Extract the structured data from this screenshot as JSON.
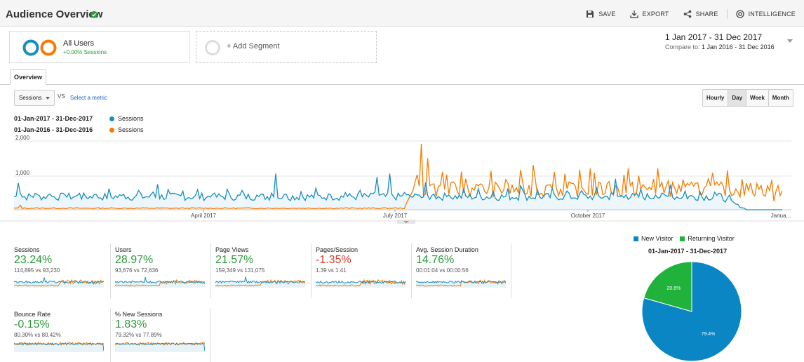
{
  "header": {
    "title": "Audience Overview",
    "actions": [
      {
        "name": "save",
        "label": "SAVE",
        "icon": "save-icon"
      },
      {
        "name": "export",
        "label": "EXPORT",
        "icon": "export-icon"
      },
      {
        "name": "share",
        "label": "SHARE",
        "icon": "share-icon"
      },
      {
        "name": "intelligence",
        "label": "INTELLIGENCE",
        "icon": "intelligence-icon"
      }
    ]
  },
  "segments": {
    "active": {
      "title": "All Users",
      "subtitle": "+0.00% Sessions"
    },
    "add_label": "+ Add Segment"
  },
  "date": {
    "range": "1 Jan 2017 - 31 Dec 2017",
    "compare_label": "Compare to:",
    "compare_range": "1 Jan 2016 - 31 Dec 2016"
  },
  "tabs": [
    {
      "label": "Overview"
    }
  ],
  "controls": {
    "metric": "Sessions",
    "vs": "VS",
    "select_metric": "Select a metric",
    "granularity": [
      "Hourly",
      "Day",
      "Week",
      "Month"
    ],
    "active_granularity": "Day"
  },
  "colors": {
    "current": "#1a8ebf",
    "previous": "#f57c00",
    "green": "#2d9a3a",
    "red": "#d93c2a"
  },
  "chart_data": [
    {
      "type": "line",
      "series": [
        {
          "name": "Sessions",
          "range": "01-Jan-2017 - 31-Dec-2017",
          "color": "#1a8ebf"
        },
        {
          "name": "Sessions",
          "range": "01-Jan-2016 - 31-Dec-2016",
          "color": "#f57c00"
        }
      ],
      "y_ticks": [
        "2,000",
        "1,000"
      ],
      "ylim": [
        0,
        2000
      ],
      "x_ticks": [
        "April 2017",
        "July 2017",
        "October 2017",
        "Janua..."
      ],
      "grid": true
    },
    {
      "type": "pie",
      "title": "01-Jan-2017 - 31-Dec-2017",
      "slices": [
        {
          "name": "New Visitor",
          "value": 79.4,
          "label": "79.4%",
          "color": "#0b86c5"
        },
        {
          "name": "Returning Visitor",
          "value": 20.6,
          "label": "20.6%",
          "color": "#21b23b"
        }
      ]
    }
  ],
  "kpis": [
    {
      "label": "Sessions",
      "pct": "23.24%",
      "trend": "pos",
      "values": "114,895 vs 93,230"
    },
    {
      "label": "Users",
      "pct": "28.97%",
      "trend": "pos",
      "values": "93,676 vs 72,636"
    },
    {
      "label": "Page Views",
      "pct": "21.57%",
      "trend": "pos",
      "values": "159,349 vs 131,075"
    },
    {
      "label": "Pages/Session",
      "pct": "-1.35%",
      "trend": "neg",
      "values": "1.39 vs 1.41"
    },
    {
      "label": "Avg. Session Duration",
      "pct": "14.76%",
      "trend": "pos",
      "values": "00:01:04 vs 00:00:56"
    },
    {
      "label": "Bounce Rate",
      "pct": "-0.15%",
      "trend": "pos",
      "values": "80.30% vs 80.42%"
    },
    {
      "label": "% New Sessions",
      "pct": "1.83%",
      "trend": "pos",
      "values": "79.32% vs 77.89%"
    }
  ]
}
